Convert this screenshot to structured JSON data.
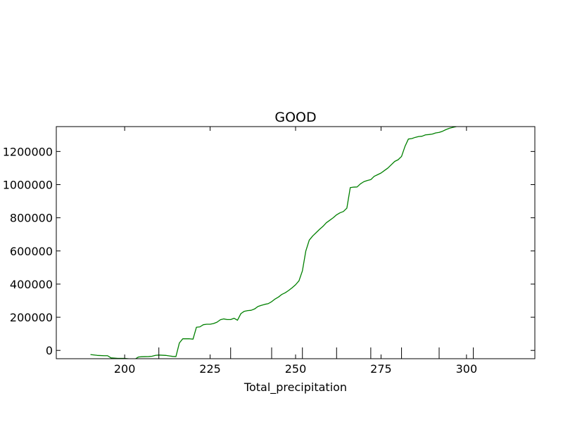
{
  "chart_data": {
    "type": "line",
    "title": "GOOD",
    "xlabel": "Total_precipitation",
    "ylabel": "",
    "xlim": [
      180,
      320
    ],
    "ylim": [
      -50000,
      1350000
    ],
    "xticks": [
      200,
      225,
      250,
      275,
      300
    ],
    "xtick_labels": [
      "200",
      "225",
      "250",
      "275",
      "300"
    ],
    "yticks": [
      0,
      200000,
      400000,
      600000,
      800000,
      1000000,
      1200000
    ],
    "ytick_labels": [
      "0",
      "200000",
      "400000",
      "600000",
      "800000",
      "1000000",
      "1200000"
    ],
    "grid": false,
    "legend": "none",
    "series": [
      {
        "color": "#008000",
        "x": [
          190,
          192,
          194,
          195,
          196,
          198,
          200,
          202,
          203,
          204,
          205,
          207,
          208,
          209,
          210,
          212,
          213,
          214,
          215,
          216,
          217,
          218,
          219,
          220,
          221,
          222,
          223,
          224,
          225,
          226,
          227,
          228,
          229,
          230,
          231,
          232,
          233,
          234,
          235,
          236,
          237,
          238,
          239,
          240,
          241,
          242,
          243,
          244,
          245,
          246,
          247,
          248,
          249,
          250,
          251,
          252,
          253,
          254,
          255,
          256,
          257,
          258,
          259,
          260,
          261,
          262,
          263,
          264,
          265,
          266,
          267,
          268,
          269,
          270,
          271,
          272,
          273,
          274,
          275,
          276,
          277,
          278,
          279,
          280,
          281,
          282,
          283,
          284,
          285,
          286,
          287,
          288,
          289,
          290,
          291,
          292,
          293,
          294,
          295,
          296,
          297,
          298,
          299,
          300,
          301,
          302,
          303,
          304,
          305,
          306,
          307,
          308,
          309,
          310
        ],
        "y": [
          -25000,
          -30000,
          -32000,
          -32000,
          -45000,
          -48000,
          -48000,
          -52000,
          -53000,
          -40000,
          -38000,
          -37000,
          -35000,
          -30000,
          -28000,
          -30000,
          -33000,
          -36000,
          -37000,
          45000,
          70000,
          70000,
          70000,
          68000,
          140000,
          142000,
          155000,
          158000,
          158000,
          162000,
          170000,
          185000,
          190000,
          186000,
          186000,
          194000,
          182000,
          222000,
          236000,
          240000,
          242000,
          250000,
          265000,
          272000,
          278000,
          282000,
          294000,
          310000,
          322000,
          338000,
          348000,
          362000,
          378000,
          396000,
          420000,
          480000,
          600000,
          665000,
          690000,
          710000,
          730000,
          748000,
          770000,
          785000,
          800000,
          818000,
          830000,
          838000,
          858000,
          982000,
          985000,
          986000,
          1005000,
          1018000,
          1025000,
          1030000,
          1050000,
          1060000,
          1070000,
          1085000,
          1100000,
          1120000,
          1140000,
          1150000,
          1170000,
          1230000,
          1275000,
          1278000,
          1285000,
          1290000,
          1292000,
          1300000,
          1302000,
          1305000,
          1312000,
          1315000,
          1322000,
          1332000,
          1340000,
          1345000,
          1350000,
          1355000,
          1360000,
          1365000,
          1370000,
          1375000,
          1380000,
          1385000,
          1390000,
          1395000,
          1400000,
          1405000,
          1410000,
          1415000
        ]
      }
    ],
    "extra_x_ticks": [
      210,
      231,
      243,
      252,
      262,
      272,
      281,
      292,
      302
    ]
  }
}
